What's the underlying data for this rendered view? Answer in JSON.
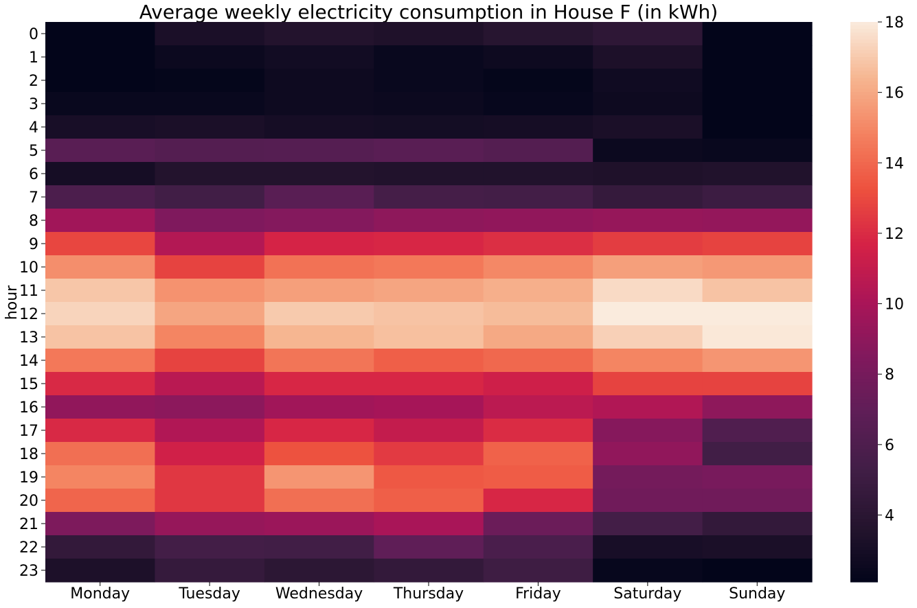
{
  "chart_data": {
    "type": "heatmap",
    "title": "Average weekly electricity consumption in House F (in kWh)",
    "xlabel": "",
    "ylabel": "hour",
    "x_categories": [
      "Monday",
      "Tuesday",
      "Wednesday",
      "Thursday",
      "Friday",
      "Saturday",
      "Sunday"
    ],
    "y_categories": [
      "0",
      "1",
      "2",
      "3",
      "4",
      "5",
      "6",
      "7",
      "8",
      "9",
      "10",
      "11",
      "12",
      "13",
      "14",
      "15",
      "16",
      "17",
      "18",
      "19",
      "20",
      "21",
      "22",
      "23"
    ],
    "values": [
      [
        2.1,
        3.2,
        3.6,
        3.4,
        3.8,
        4.2,
        2.1
      ],
      [
        2.1,
        2.5,
        2.8,
        2.4,
        2.6,
        3.3,
        2.1
      ],
      [
        2.1,
        2.2,
        2.6,
        2.4,
        2.2,
        2.7,
        2.1
      ],
      [
        2.4,
        2.4,
        2.6,
        2.5,
        2.3,
        2.6,
        2.1
      ],
      [
        3.1,
        3.2,
        3.0,
        2.9,
        3.0,
        3.2,
        2.1
      ],
      [
        6.6,
        6.3,
        6.4,
        6.6,
        6.3,
        2.5,
        2.4
      ],
      [
        3.0,
        3.6,
        3.6,
        3.5,
        3.5,
        3.4,
        3.5
      ],
      [
        5.9,
        5.3,
        6.6,
        5.5,
        5.4,
        4.6,
        5.0
      ],
      [
        9.7,
        8.4,
        8.6,
        9.0,
        9.1,
        9.3,
        9.2
      ],
      [
        12.9,
        10.4,
        11.7,
        11.8,
        12.1,
        12.6,
        12.8
      ],
      [
        15.2,
        12.8,
        14.3,
        14.5,
        15.0,
        15.7,
        15.5
      ],
      [
        16.9,
        15.3,
        15.7,
        15.9,
        16.2,
        17.5,
        16.8
      ],
      [
        17.3,
        15.9,
        17.0,
        16.8,
        16.6,
        18.0,
        18.0
      ],
      [
        16.8,
        14.9,
        16.4,
        16.7,
        16.0,
        17.2,
        17.9
      ],
      [
        14.5,
        12.8,
        14.4,
        13.7,
        14.0,
        14.9,
        15.4
      ],
      [
        11.9,
        10.6,
        11.8,
        11.8,
        11.4,
        12.8,
        12.8
      ],
      [
        9.1,
        8.9,
        9.7,
        9.9,
        10.7,
        10.3,
        9.0
      ],
      [
        11.9,
        10.3,
        11.8,
        11.0,
        12.0,
        8.7,
        6.1
      ],
      [
        14.2,
        11.5,
        13.3,
        12.5,
        13.8,
        9.1,
        5.3
      ],
      [
        14.9,
        12.4,
        15.4,
        13.5,
        13.6,
        7.9,
        8.1
      ],
      [
        13.9,
        12.4,
        14.2,
        13.7,
        11.8,
        7.7,
        7.7
      ],
      [
        8.3,
        9.3,
        9.5,
        10.0,
        7.5,
        5.4,
        4.5
      ],
      [
        4.5,
        5.4,
        5.3,
        6.9,
        5.8,
        3.1,
        3.2
      ],
      [
        3.3,
        4.6,
        4.1,
        4.5,
        5.1,
        2.3,
        2.1
      ]
    ],
    "vmin": 2.1,
    "vmax": 18.0,
    "colorbar_ticks": [
      "4",
      "6",
      "8",
      "10",
      "12",
      "14",
      "16",
      "18"
    ]
  }
}
